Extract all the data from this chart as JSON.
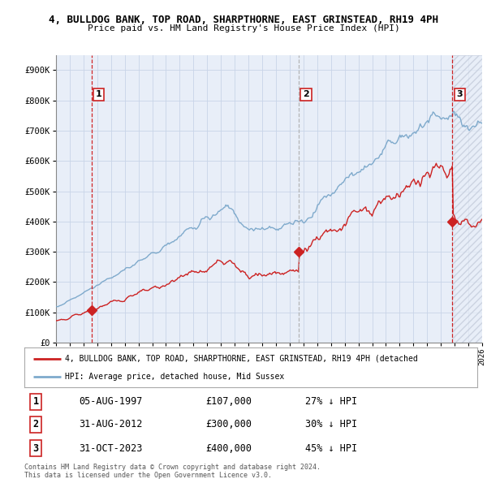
{
  "title": "4, BULLDOG BANK, TOP ROAD, SHARPTHORNE, EAST GRINSTEAD, RH19 4PH",
  "subtitle": "Price paid vs. HM Land Registry's House Price Index (HPI)",
  "xlim_years": [
    1995,
    2026
  ],
  "ylim": [
    0,
    950000
  ],
  "yticks": [
    0,
    100000,
    200000,
    300000,
    400000,
    500000,
    600000,
    700000,
    800000,
    900000
  ],
  "ytick_labels": [
    "£0",
    "£100K",
    "£200K",
    "£300K",
    "£400K",
    "£500K",
    "£600K",
    "£700K",
    "£800K",
    "£900K"
  ],
  "sales": [
    {
      "date_year": 1997.58,
      "price": 107000,
      "label": "1"
    },
    {
      "date_year": 2012.66,
      "price": 300000,
      "label": "2"
    },
    {
      "date_year": 2023.83,
      "price": 400000,
      "label": "3"
    }
  ],
  "vline_colors": [
    "#cc0000",
    "#aaaaaa",
    "#cc0000"
  ],
  "vline_styles": [
    "--",
    "--",
    "--"
  ],
  "legend_label_red": "4, BULLDOG BANK, TOP ROAD, SHARPTHORNE, EAST GRINSTEAD, RH19 4PH (detached",
  "legend_label_blue": "HPI: Average price, detached house, Mid Sussex",
  "table_rows": [
    {
      "num": "1",
      "date": "05-AUG-1997",
      "price": "£107,000",
      "hpi": "27% ↓ HPI"
    },
    {
      "num": "2",
      "date": "31-AUG-2012",
      "price": "£300,000",
      "hpi": "30% ↓ HPI"
    },
    {
      "num": "3",
      "date": "31-OCT-2023",
      "price": "£400,000",
      "hpi": "45% ↓ HPI"
    }
  ],
  "footnote": "Contains HM Land Registry data © Crown copyright and database right 2024.\nThis data is licensed under the Open Government Licence v3.0.",
  "plot_bg_color": "#e8eef8",
  "grid_color": "#c8d4e8",
  "hatch_color": "#d0d8e8"
}
